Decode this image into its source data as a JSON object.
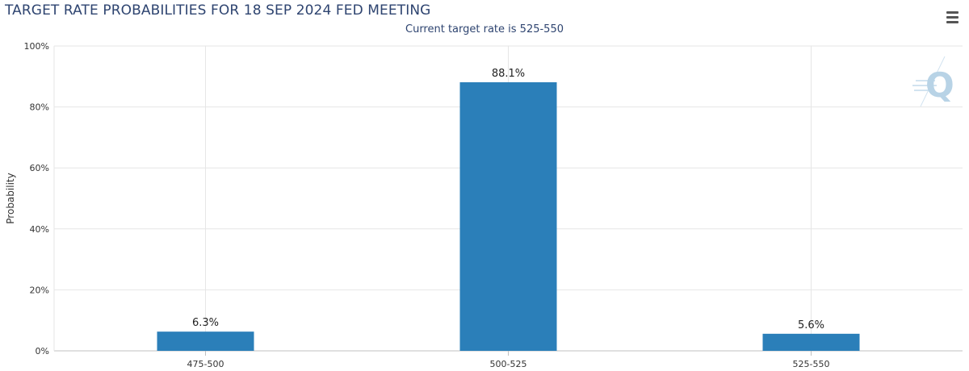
{
  "chart_data": {
    "type": "bar",
    "title": "TARGET RATE PROBABILITIES FOR 18 SEP 2024 FED MEETING",
    "subtitle": "Current target rate is 525-550",
    "xlabel": "",
    "ylabel": "Probability",
    "categories": [
      "475-500",
      "500-525",
      "525-550"
    ],
    "values": [
      6.3,
      88.1,
      5.6
    ],
    "data_labels": [
      "6.3%",
      "88.1%",
      "5.6%"
    ],
    "ylim": [
      0,
      100
    ],
    "yticks": [
      0,
      20,
      40,
      60,
      80,
      100
    ],
    "ytick_labels": [
      "0%",
      "20%",
      "40%",
      "60%",
      "80%",
      "100%"
    ],
    "grid": true,
    "legend": "none",
    "bar_color": "#2b7fb9"
  },
  "toolbar": {
    "menu_icon": "hamburger-menu-icon"
  },
  "watermark": {
    "text": "Q",
    "color": "#b8d3e6"
  }
}
